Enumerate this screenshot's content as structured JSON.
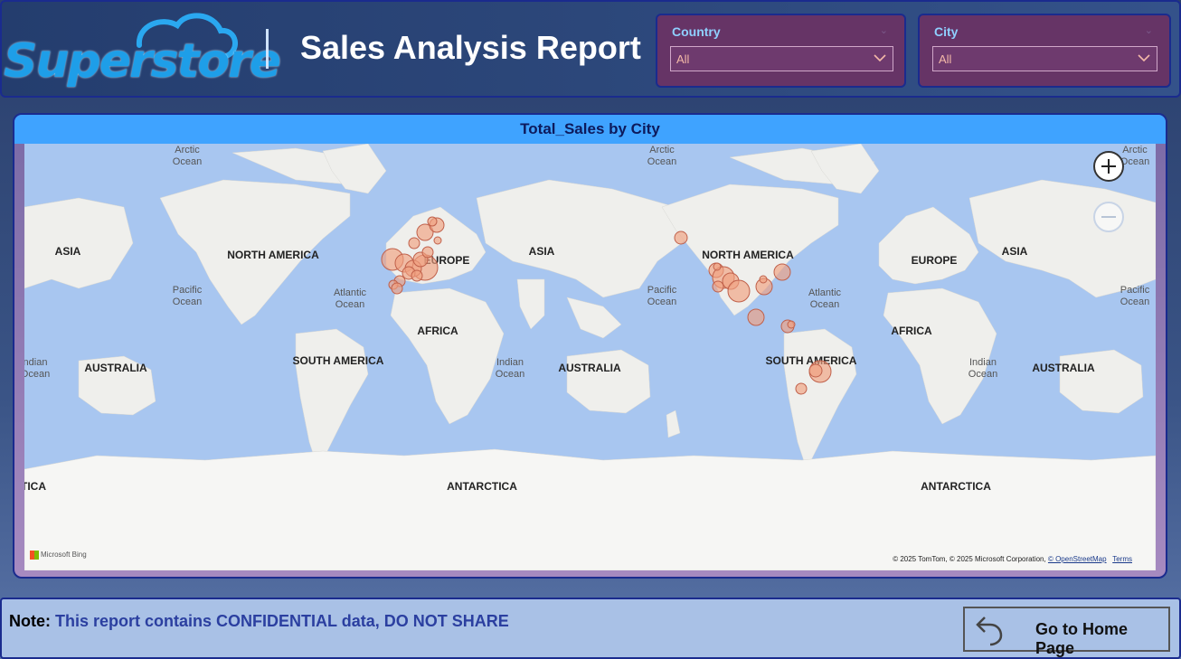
{
  "header": {
    "logo_text": "Superstore",
    "title": "Sales Analysis Report"
  },
  "filters": {
    "country": {
      "label": "Country",
      "value": "All"
    },
    "city": {
      "label": "City",
      "value": "All"
    }
  },
  "map": {
    "title": "Total_Sales by City",
    "labels": {
      "arctic_ocean": "Arctic\nOcean",
      "pacific_ocean": "Pacific\nOcean",
      "atlantic_ocean": "Atlantic\nOcean",
      "indian_ocean": "Indian\nOcean",
      "asia": "ASIA",
      "north_america": "NORTH AMERICA",
      "europe": "EUROPE",
      "africa": "AFRICA",
      "south_america": "SOUTH AMERICA",
      "australia": "AUSTRALIA",
      "antarctica": "ANTARCTICA",
      "antarctica_partial": "TICA",
      "indian_partial": "ndian\nOcean"
    },
    "attribution": "© 2025 TomTom, © 2025 Microsoft Corporation,",
    "attribution_osm": "© OpenStreetMap",
    "attribution_terms": "Terms",
    "bing_label": "Microsoft Bing",
    "bubble_color": "#f0a080",
    "bubble_stroke": "#c0604a"
  },
  "footer": {
    "note_label": "Note:",
    "note_text": "This report contains CONFIDENTIAL data, DO NOT SHARE",
    "home_button": "Go to Home Page"
  },
  "colors": {
    "header_bg": "#2c477a",
    "slicer_bg": "#663466",
    "map_title_bar": "#3fa3ff",
    "ocean": "#a8c6f0",
    "land": "#efefec",
    "footer_bg": "#a9c1e6"
  }
}
